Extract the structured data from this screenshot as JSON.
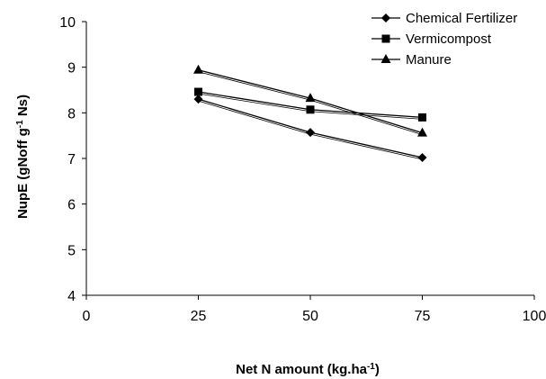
{
  "chart_data": {
    "type": "line",
    "title": "",
    "xlabel": {
      "main": "Net N amount (kg.ha",
      "sup": "-1",
      "tail": ")"
    },
    "ylabel": {
      "main": "NupE (gNoff g",
      "sup": "-1",
      "tail": " Ns)"
    },
    "xlim": [
      0,
      100
    ],
    "ylim": [
      4,
      10
    ],
    "xticks": [
      0,
      25,
      50,
      75,
      100
    ],
    "yticks": [
      4,
      5,
      6,
      7,
      8,
      9,
      10
    ],
    "grid": false,
    "legend_position": "top-right",
    "x": [
      25,
      50,
      75
    ],
    "series": [
      {
        "name": "Chemical Fertilizer",
        "marker": "diamond",
        "values": [
          8.3,
          7.57,
          7.02
        ]
      },
      {
        "name": "Vermicompost",
        "marker": "square",
        "values": [
          8.46,
          8.07,
          7.9
        ]
      },
      {
        "name": "Manure",
        "marker": "triangle",
        "values": [
          8.94,
          8.32,
          7.56
        ]
      }
    ],
    "colors": {
      "line": "#000000",
      "marker": "#000000"
    }
  }
}
